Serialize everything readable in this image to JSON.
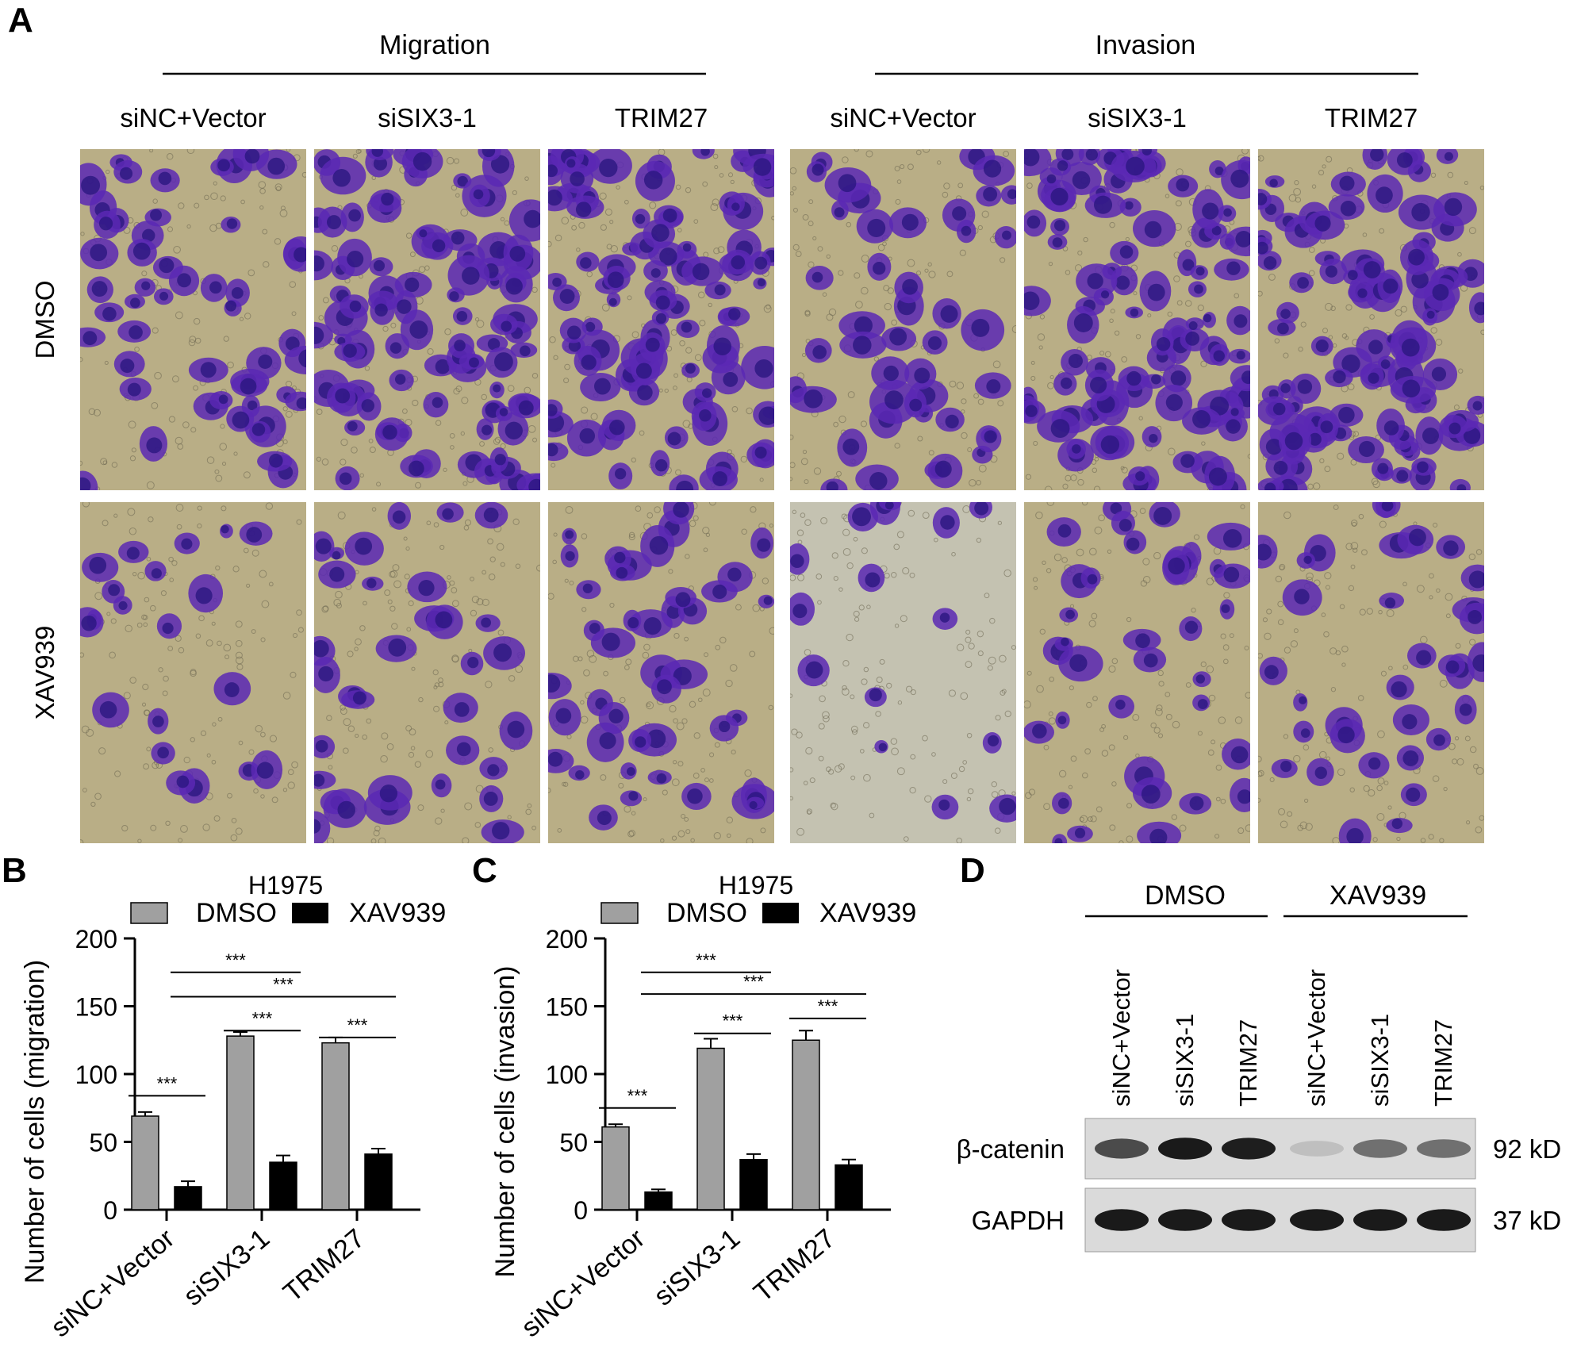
{
  "panels": {
    "A": {
      "letter": "A",
      "migration_label": "Migration",
      "invasion_label": "Invasion",
      "column_labels": [
        "siNC+Vector",
        "siSIX3-1",
        "TRIM27",
        "siNC+Vector",
        "siSIX3-1",
        "TRIM27"
      ],
      "row_labels": [
        "DMSO",
        "XAV939"
      ],
      "colors": {
        "background": "#b9ae86",
        "background_alt": "#c4c2b1",
        "stain": "#5a28b4",
        "stain_dark": "#2a1680"
      },
      "images": [
        {
          "row": 0,
          "col": 0,
          "density": 0.45
        },
        {
          "row": 0,
          "col": 1,
          "density": 0.85
        },
        {
          "row": 0,
          "col": 2,
          "density": 0.85
        },
        {
          "row": 0,
          "col": 3,
          "density": 0.4
        },
        {
          "row": 0,
          "col": 4,
          "density": 0.9
        },
        {
          "row": 0,
          "col": 5,
          "density": 0.9
        },
        {
          "row": 1,
          "col": 0,
          "density": 0.18
        },
        {
          "row": 1,
          "col": 1,
          "density": 0.3
        },
        {
          "row": 1,
          "col": 2,
          "density": 0.38
        },
        {
          "row": 1,
          "col": 3,
          "density": 0.14
        },
        {
          "row": 1,
          "col": 4,
          "density": 0.32
        },
        {
          "row": 1,
          "col": 5,
          "density": 0.3
        }
      ]
    },
    "D": {
      "letter": "D",
      "groups": [
        "DMSO",
        "XAV939"
      ],
      "lane_labels": [
        "siNC+Vector",
        "siSIX3-1",
        "TRIM27",
        "siNC+Vector",
        "siSIX3-1",
        "TRIM27"
      ],
      "rows": [
        {
          "label": "β-catenin",
          "size": "92 kD",
          "intensities": [
            0.72,
            0.95,
            0.93,
            0.18,
            0.55,
            0.55
          ]
        },
        {
          "label": "GAPDH",
          "size": "37 kD",
          "intensities": [
            0.95,
            0.95,
            0.95,
            0.95,
            0.95,
            0.95
          ]
        }
      ]
    }
  },
  "chart_data": [
    {
      "panel": "B",
      "type": "bar",
      "title": "H1975",
      "ylabel": "Number of cells (migration)",
      "xlabel": "",
      "ylim": [
        0,
        200
      ],
      "yticks": [
        0,
        50,
        100,
        150,
        200
      ],
      "categories": [
        "siNC+Vector",
        "siSIX3-1",
        "TRIM27"
      ],
      "series": [
        {
          "name": "DMSO",
          "color": "#a0a0a0",
          "values": [
            69,
            128,
            123
          ],
          "errors": [
            3,
            3,
            4
          ]
        },
        {
          "name": "XAV939",
          "color": "#000000",
          "values": [
            17,
            35,
            41
          ],
          "errors": [
            4,
            5,
            4
          ]
        }
      ],
      "legend": "top",
      "significance": [
        {
          "from": [
            0,
            0
          ],
          "to": [
            0,
            1
          ],
          "label": "***",
          "level": 84
        },
        {
          "from": [
            1,
            0
          ],
          "to": [
            1,
            1
          ],
          "label": "***",
          "level": 132
        },
        {
          "from": [
            2,
            0
          ],
          "to": [
            2,
            1
          ],
          "label": "***",
          "level": 127
        },
        {
          "from": [
            0,
            1
          ],
          "to": [
            1,
            1
          ],
          "label": "***",
          "level": 175
        },
        {
          "from": [
            0,
            1
          ],
          "to": [
            2,
            1
          ],
          "label": "***",
          "level": 157
        }
      ]
    },
    {
      "panel": "C",
      "type": "bar",
      "title": "H1975",
      "ylabel": "Number of cells (invasion)",
      "xlabel": "",
      "ylim": [
        0,
        200
      ],
      "yticks": [
        0,
        50,
        100,
        150,
        200
      ],
      "categories": [
        "siNC+Vector",
        "siSIX3-1",
        "TRIM27"
      ],
      "series": [
        {
          "name": "DMSO",
          "color": "#a0a0a0",
          "values": [
            61,
            119,
            125
          ],
          "errors": [
            2,
            7,
            7
          ]
        },
        {
          "name": "XAV939",
          "color": "#000000",
          "values": [
            13,
            37,
            33
          ],
          "errors": [
            2,
            4,
            4
          ]
        }
      ],
      "legend": "top",
      "significance": [
        {
          "from": [
            0,
            0
          ],
          "to": [
            0,
            1
          ],
          "label": "***",
          "level": 75
        },
        {
          "from": [
            1,
            0
          ],
          "to": [
            1,
            1
          ],
          "label": "***",
          "level": 130
        },
        {
          "from": [
            2,
            0
          ],
          "to": [
            2,
            1
          ],
          "label": "***",
          "level": 141
        },
        {
          "from": [
            0,
            1
          ],
          "to": [
            1,
            1
          ],
          "label": "***",
          "level": 175
        },
        {
          "from": [
            0,
            1
          ],
          "to": [
            2,
            1
          ],
          "label": "***",
          "level": 159
        }
      ]
    }
  ]
}
